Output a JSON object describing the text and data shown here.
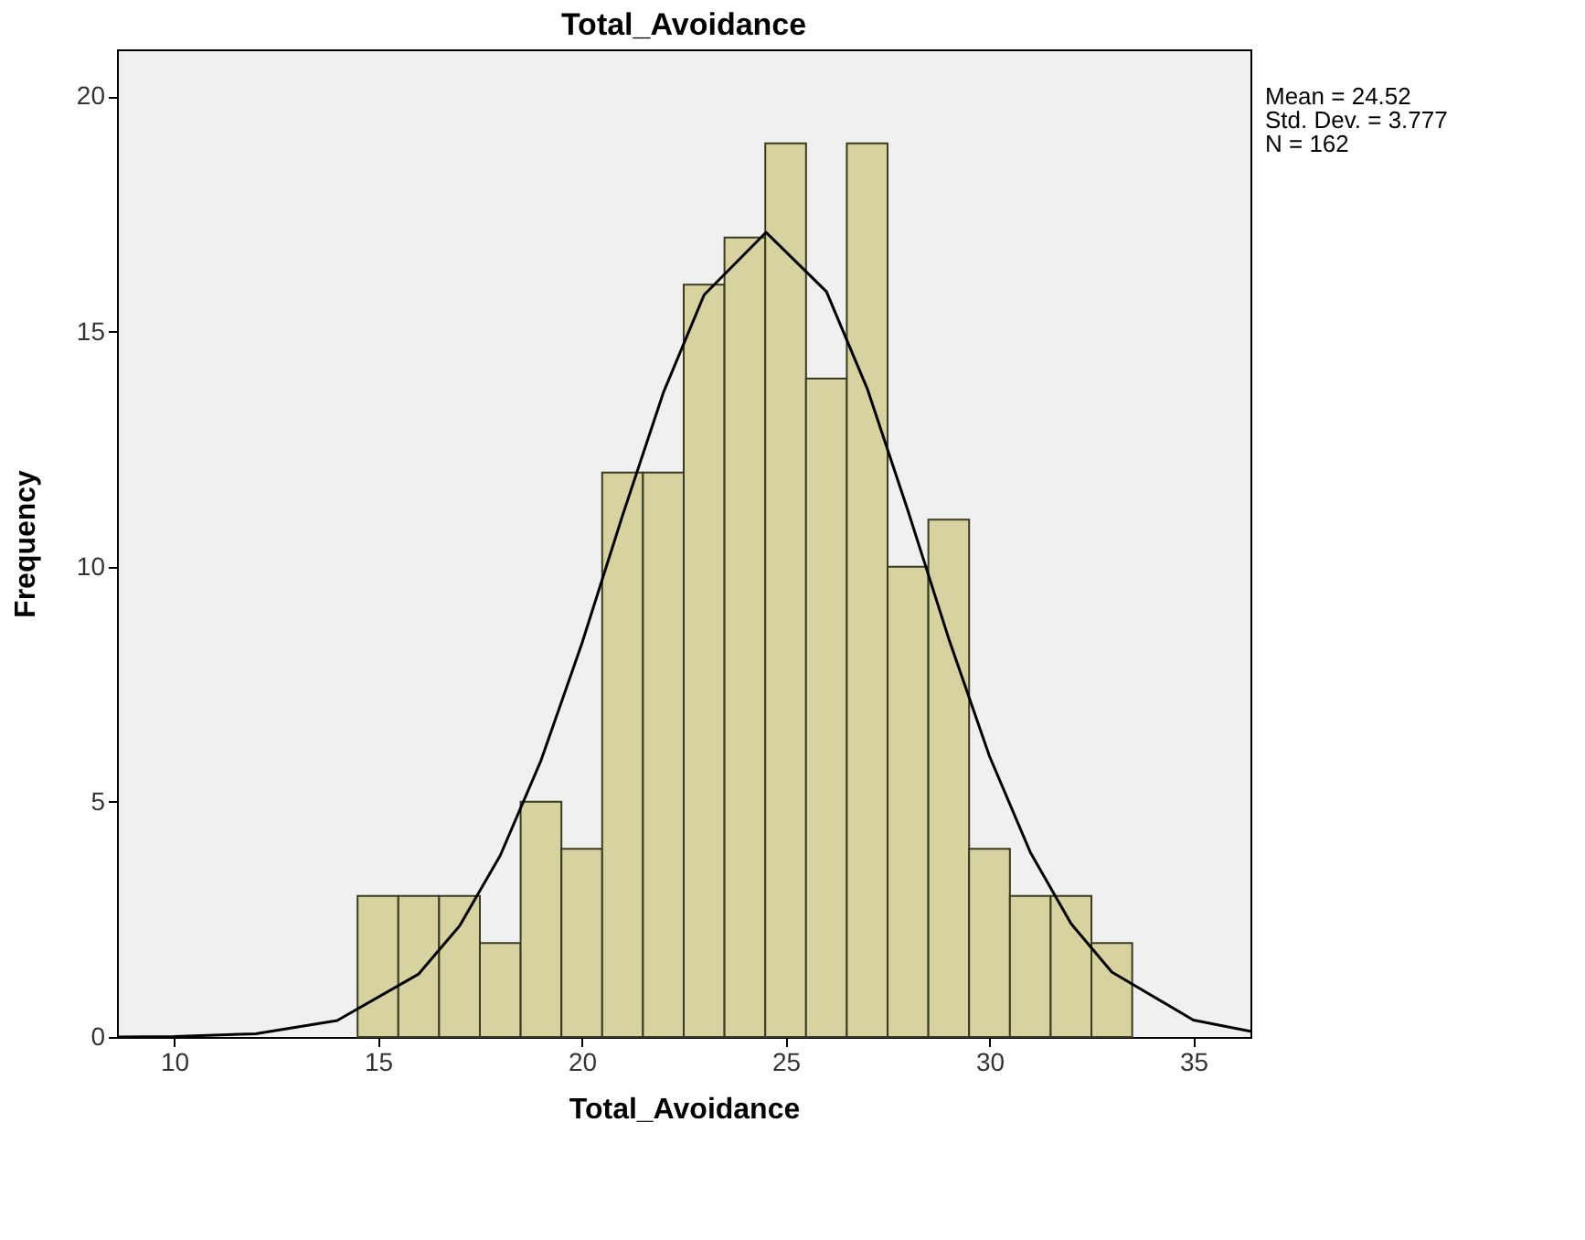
{
  "chart_data": {
    "type": "histogram",
    "title": "Total_Avoidance",
    "xlabel": "Total_Avoidance",
    "ylabel": "Frequency",
    "bins": [
      14.5,
      15.5,
      16.5,
      17.5,
      18.5,
      19.5,
      20.5,
      21.5,
      22.5,
      23.5,
      24.5,
      25.5,
      26.5,
      27.5,
      28.5,
      29.5,
      30.5,
      31.5,
      32.5,
      33.5
    ],
    "values": [
      3,
      3,
      3,
      2,
      5,
      4,
      12,
      12,
      16,
      17,
      19,
      14,
      19,
      10,
      11,
      4,
      3,
      3,
      2
    ],
    "color": "#d6d3a0",
    "series": [
      {
        "type": "line",
        "color": "#000000",
        "x": [
          8.6,
          10,
          12,
          14,
          16,
          17,
          18,
          19,
          20,
          21,
          22,
          23,
          24.52,
          26,
          27,
          28,
          29,
          30,
          31,
          32,
          33,
          35,
          36.4
        ],
        "values": [
          0,
          0.01,
          0.07,
          0.35,
          1.34,
          2.36,
          3.86,
          5.88,
          8.36,
          11.09,
          13.7,
          15.78,
          17.11,
          15.85,
          13.79,
          11.19,
          8.47,
          5.97,
          3.93,
          2.41,
          1.38,
          0.36,
          0.12
        ]
      }
    ],
    "xlim": [
      8.6,
      36.4
    ],
    "xticks": [
      10,
      15,
      20,
      25,
      30,
      35
    ],
    "ylim": [
      0,
      21
    ],
    "yticks": [
      0,
      5,
      10,
      15,
      20
    ],
    "grid": false,
    "annotations": [
      "Mean = 24.52",
      "Std. Dev. = 3.777",
      "N = 162"
    ]
  }
}
